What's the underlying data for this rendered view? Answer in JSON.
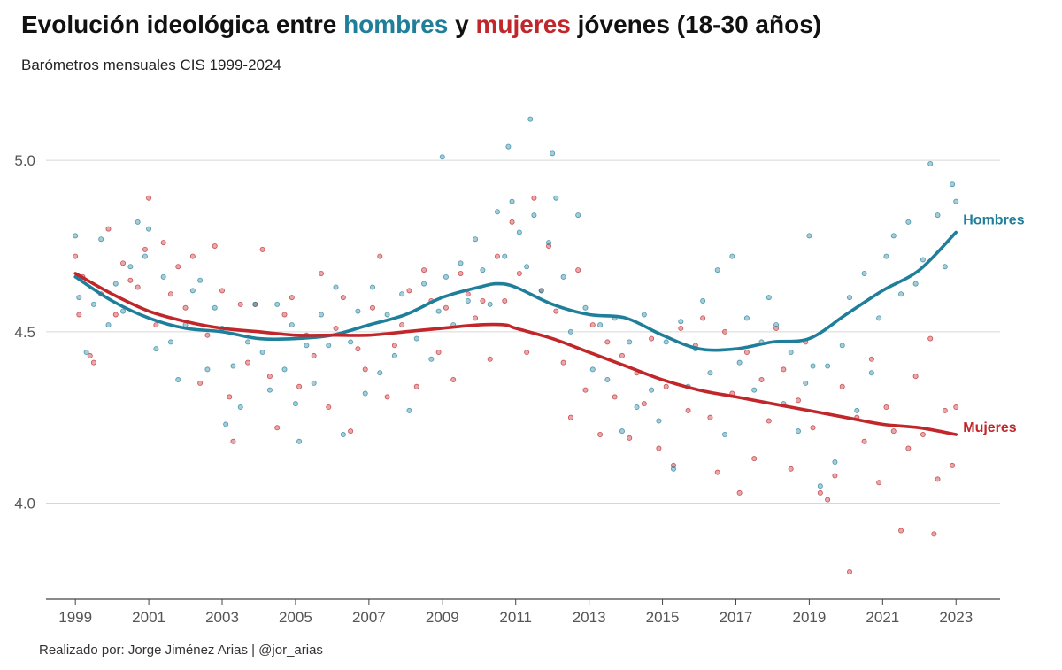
{
  "header": {
    "title_part1": "Evolución ideológica entre ",
    "title_men": "hombres",
    "title_part2": " y ",
    "title_women": "mujeres",
    "title_part3": " jóvenes (18-30 años)",
    "subtitle": "Barómetros mensuales CIS 1999-2024"
  },
  "caption": "Realizado por: Jorge Jiménez Arias | @jor_arias",
  "colors": {
    "men": "#1f7f9b",
    "women": "#c0262a",
    "grid": "#d6d6d6",
    "axis": "#444444"
  },
  "chart_data": {
    "type": "scatter",
    "title": "Evolución ideológica entre hombres y mujeres jóvenes (18-30 años)",
    "subtitle": "Barómetros mensuales CIS 1999-2024",
    "xlabel": "",
    "ylabel": "",
    "xlim": [
      1998.2,
      2024.2
    ],
    "ylim": [
      3.72,
      5.23
    ],
    "x_ticks": [
      1999,
      2001,
      2003,
      2005,
      2007,
      2009,
      2011,
      2013,
      2015,
      2017,
      2019,
      2021,
      2023
    ],
    "y_ticks": [
      4.0,
      4.5,
      5.0
    ],
    "x_tick_labels": [
      "1999",
      "2001",
      "2003",
      "2005",
      "2007",
      "2009",
      "2011",
      "2013",
      "2015",
      "2017",
      "2019",
      "2021",
      "2023"
    ],
    "y_tick_labels": [
      "4.0",
      "4.5",
      "5.0"
    ],
    "grid": "horizontal",
    "series": [
      {
        "name": "Hombres",
        "color": "#1f7f9b",
        "trend": {
          "x": [
            1999,
            2000,
            2001,
            2002,
            2003,
            2004,
            2005,
            2006,
            2007,
            2008,
            2009,
            2010,
            2010.5,
            2011,
            2012,
            2013,
            2014,
            2015,
            2016,
            2017,
            2018,
            2019,
            2020,
            2021,
            2022,
            2023
          ],
          "y": [
            4.66,
            4.59,
            4.54,
            4.51,
            4.5,
            4.48,
            4.48,
            4.49,
            4.52,
            4.55,
            4.6,
            4.63,
            4.64,
            4.63,
            4.58,
            4.55,
            4.54,
            4.49,
            4.45,
            4.45,
            4.47,
            4.48,
            4.55,
            4.62,
            4.68,
            4.79
          ]
        },
        "points": [
          [
            1999.0,
            4.78
          ],
          [
            1999.1,
            4.6
          ],
          [
            1999.3,
            4.44
          ],
          [
            1999.5,
            4.58
          ],
          [
            1999.7,
            4.77
          ],
          [
            1999.9,
            4.52
          ],
          [
            2000.1,
            4.64
          ],
          [
            2000.3,
            4.56
          ],
          [
            2000.5,
            4.69
          ],
          [
            2000.7,
            4.82
          ],
          [
            2000.9,
            4.72
          ],
          [
            2001.0,
            4.8
          ],
          [
            2001.2,
            4.45
          ],
          [
            2001.4,
            4.66
          ],
          [
            2001.6,
            4.47
          ],
          [
            2001.8,
            4.36
          ],
          [
            2002.0,
            4.52
          ],
          [
            2002.2,
            4.62
          ],
          [
            2002.4,
            4.65
          ],
          [
            2002.6,
            4.39
          ],
          [
            2002.8,
            4.57
          ],
          [
            2003.0,
            4.51
          ],
          [
            2003.1,
            4.23
          ],
          [
            2003.3,
            4.4
          ],
          [
            2003.5,
            4.28
          ],
          [
            2003.7,
            4.47
          ],
          [
            2003.9,
            4.58
          ],
          [
            2004.1,
            4.44
          ],
          [
            2004.3,
            4.33
          ],
          [
            2004.5,
            4.58
          ],
          [
            2004.7,
            4.39
          ],
          [
            2004.9,
            4.52
          ],
          [
            2005.0,
            4.29
          ],
          [
            2005.1,
            4.18
          ],
          [
            2005.3,
            4.46
          ],
          [
            2005.5,
            4.35
          ],
          [
            2005.7,
            4.55
          ],
          [
            2005.9,
            4.46
          ],
          [
            2006.1,
            4.63
          ],
          [
            2006.3,
            4.2
          ],
          [
            2006.5,
            4.47
          ],
          [
            2006.7,
            4.56
          ],
          [
            2006.9,
            4.32
          ],
          [
            2007.1,
            4.63
          ],
          [
            2007.3,
            4.38
          ],
          [
            2007.5,
            4.55
          ],
          [
            2007.7,
            4.43
          ],
          [
            2007.9,
            4.61
          ],
          [
            2008.1,
            4.27
          ],
          [
            2008.3,
            4.48
          ],
          [
            2008.5,
            4.64
          ],
          [
            2008.7,
            4.42
          ],
          [
            2008.9,
            4.56
          ],
          [
            2009.0,
            5.01
          ],
          [
            2009.1,
            4.66
          ],
          [
            2009.3,
            4.52
          ],
          [
            2009.5,
            4.7
          ],
          [
            2009.7,
            4.59
          ],
          [
            2009.9,
            4.77
          ],
          [
            2010.1,
            4.68
          ],
          [
            2010.3,
            4.58
          ],
          [
            2010.5,
            4.85
          ],
          [
            2010.7,
            4.72
          ],
          [
            2010.8,
            5.04
          ],
          [
            2010.9,
            4.88
          ],
          [
            2011.1,
            4.79
          ],
          [
            2011.3,
            4.69
          ],
          [
            2011.4,
            5.12
          ],
          [
            2011.5,
            4.84
          ],
          [
            2011.7,
            4.62
          ],
          [
            2011.9,
            4.76
          ],
          [
            2012.0,
            5.02
          ],
          [
            2012.1,
            4.89
          ],
          [
            2012.3,
            4.66
          ],
          [
            2012.5,
            4.5
          ],
          [
            2012.7,
            4.84
          ],
          [
            2012.9,
            4.57
          ],
          [
            2013.1,
            4.39
          ],
          [
            2013.3,
            4.52
          ],
          [
            2013.5,
            4.36
          ],
          [
            2013.7,
            4.54
          ],
          [
            2013.9,
            4.21
          ],
          [
            2014.1,
            4.47
          ],
          [
            2014.3,
            4.28
          ],
          [
            2014.5,
            4.55
          ],
          [
            2014.7,
            4.33
          ],
          [
            2014.9,
            4.24
          ],
          [
            2015.1,
            4.47
          ],
          [
            2015.3,
            4.1
          ],
          [
            2015.5,
            4.53
          ],
          [
            2015.7,
            4.34
          ],
          [
            2015.9,
            4.45
          ],
          [
            2016.1,
            4.59
          ],
          [
            2016.3,
            4.38
          ],
          [
            2016.5,
            4.68
          ],
          [
            2016.7,
            4.2
          ],
          [
            2016.9,
            4.72
          ],
          [
            2017.1,
            4.41
          ],
          [
            2017.3,
            4.54
          ],
          [
            2017.5,
            4.33
          ],
          [
            2017.7,
            4.47
          ],
          [
            2017.9,
            4.6
          ],
          [
            2018.1,
            4.52
          ],
          [
            2018.3,
            4.29
          ],
          [
            2018.5,
            4.44
          ],
          [
            2018.7,
            4.21
          ],
          [
            2018.9,
            4.35
          ],
          [
            2019.0,
            4.78
          ],
          [
            2019.1,
            4.4
          ],
          [
            2019.3,
            4.05
          ],
          [
            2019.5,
            4.4
          ],
          [
            2019.7,
            4.12
          ],
          [
            2019.9,
            4.46
          ],
          [
            2020.1,
            4.6
          ],
          [
            2020.3,
            4.27
          ],
          [
            2020.5,
            4.67
          ],
          [
            2020.7,
            4.38
          ],
          [
            2020.9,
            4.54
          ],
          [
            2021.1,
            4.72
          ],
          [
            2021.3,
            4.78
          ],
          [
            2021.5,
            4.61
          ],
          [
            2021.7,
            4.82
          ],
          [
            2021.9,
            4.64
          ],
          [
            2022.1,
            4.71
          ],
          [
            2022.3,
            4.99
          ],
          [
            2022.5,
            4.84
          ],
          [
            2022.7,
            4.69
          ],
          [
            2022.9,
            4.93
          ],
          [
            2023.0,
            4.88
          ]
        ]
      },
      {
        "name": "Mujeres",
        "color": "#c0262a",
        "trend": {
          "x": [
            1999,
            2000,
            2001,
            2002,
            2003,
            2004,
            2005,
            2006,
            2007,
            2008,
            2009,
            2010,
            2010.7,
            2011,
            2012,
            2013,
            2014,
            2015,
            2016,
            2017,
            2018,
            2019,
            2020,
            2021,
            2022,
            2023
          ],
          "y": [
            4.67,
            4.61,
            4.56,
            4.53,
            4.51,
            4.5,
            4.49,
            4.49,
            4.49,
            4.5,
            4.51,
            4.52,
            4.52,
            4.51,
            4.48,
            4.44,
            4.4,
            4.36,
            4.33,
            4.31,
            4.29,
            4.27,
            4.25,
            4.23,
            4.22,
            4.2
          ]
        },
        "points": [
          [
            1999.0,
            4.72
          ],
          [
            1999.1,
            4.55
          ],
          [
            1999.2,
            4.66
          ],
          [
            1999.4,
            4.43
          ],
          [
            1999.5,
            4.41
          ],
          [
            1999.7,
            4.61
          ],
          [
            1999.9,
            4.8
          ],
          [
            2000.1,
            4.55
          ],
          [
            2000.3,
            4.7
          ],
          [
            2000.5,
            4.65
          ],
          [
            2000.7,
            4.63
          ],
          [
            2000.9,
            4.74
          ],
          [
            2001.0,
            4.89
          ],
          [
            2001.2,
            4.52
          ],
          [
            2001.4,
            4.76
          ],
          [
            2001.6,
            4.61
          ],
          [
            2001.8,
            4.69
          ],
          [
            2002.0,
            4.57
          ],
          [
            2002.2,
            4.72
          ],
          [
            2002.4,
            4.35
          ],
          [
            2002.6,
            4.49
          ],
          [
            2002.8,
            4.75
          ],
          [
            2003.0,
            4.62
          ],
          [
            2003.2,
            4.31
          ],
          [
            2003.3,
            4.18
          ],
          [
            2003.5,
            4.58
          ],
          [
            2003.7,
            4.41
          ],
          [
            2003.9,
            4.58
          ],
          [
            2004.1,
            4.74
          ],
          [
            2004.3,
            4.37
          ],
          [
            2004.5,
            4.22
          ],
          [
            2004.7,
            4.55
          ],
          [
            2004.9,
            4.6
          ],
          [
            2005.1,
            4.34
          ],
          [
            2005.3,
            4.49
          ],
          [
            2005.5,
            4.43
          ],
          [
            2005.7,
            4.67
          ],
          [
            2005.9,
            4.28
          ],
          [
            2006.1,
            4.51
          ],
          [
            2006.3,
            4.6
          ],
          [
            2006.5,
            4.21
          ],
          [
            2006.7,
            4.45
          ],
          [
            2006.9,
            4.39
          ],
          [
            2007.1,
            4.57
          ],
          [
            2007.3,
            4.72
          ],
          [
            2007.5,
            4.31
          ],
          [
            2007.7,
            4.46
          ],
          [
            2007.9,
            4.52
          ],
          [
            2008.1,
            4.62
          ],
          [
            2008.3,
            4.34
          ],
          [
            2008.5,
            4.68
          ],
          [
            2008.7,
            4.59
          ],
          [
            2008.9,
            4.44
          ],
          [
            2009.1,
            4.57
          ],
          [
            2009.3,
            4.36
          ],
          [
            2009.5,
            4.67
          ],
          [
            2009.7,
            4.61
          ],
          [
            2009.9,
            4.54
          ],
          [
            2010.1,
            4.59
          ],
          [
            2010.3,
            4.42
          ],
          [
            2010.5,
            4.72
          ],
          [
            2010.7,
            4.59
          ],
          [
            2010.9,
            4.82
          ],
          [
            2011.1,
            4.67
          ],
          [
            2011.3,
            4.44
          ],
          [
            2011.5,
            4.89
          ],
          [
            2011.7,
            4.62
          ],
          [
            2011.9,
            4.75
          ],
          [
            2012.1,
            4.56
          ],
          [
            2012.3,
            4.41
          ],
          [
            2012.5,
            4.25
          ],
          [
            2012.7,
            4.68
          ],
          [
            2012.9,
            4.33
          ],
          [
            2013.1,
            4.52
          ],
          [
            2013.3,
            4.2
          ],
          [
            2013.5,
            4.47
          ],
          [
            2013.7,
            4.31
          ],
          [
            2013.9,
            4.43
          ],
          [
            2014.1,
            4.19
          ],
          [
            2014.3,
            4.38
          ],
          [
            2014.5,
            4.29
          ],
          [
            2014.7,
            4.48
          ],
          [
            2014.9,
            4.16
          ],
          [
            2015.1,
            4.34
          ],
          [
            2015.3,
            4.11
          ],
          [
            2015.5,
            4.51
          ],
          [
            2015.7,
            4.27
          ],
          [
            2015.9,
            4.46
          ],
          [
            2016.1,
            4.54
          ],
          [
            2016.3,
            4.25
          ],
          [
            2016.5,
            4.09
          ],
          [
            2016.7,
            4.5
          ],
          [
            2016.9,
            4.32
          ],
          [
            2017.1,
            4.03
          ],
          [
            2017.3,
            4.44
          ],
          [
            2017.5,
            4.13
          ],
          [
            2017.7,
            4.36
          ],
          [
            2017.9,
            4.24
          ],
          [
            2018.1,
            4.51
          ],
          [
            2018.3,
            4.39
          ],
          [
            2018.5,
            4.1
          ],
          [
            2018.7,
            4.3
          ],
          [
            2018.9,
            4.47
          ],
          [
            2019.1,
            4.22
          ],
          [
            2019.3,
            4.03
          ],
          [
            2019.5,
            4.01
          ],
          [
            2019.7,
            4.08
          ],
          [
            2019.9,
            4.34
          ],
          [
            2020.1,
            3.8
          ],
          [
            2020.3,
            4.25
          ],
          [
            2020.5,
            4.18
          ],
          [
            2020.7,
            4.42
          ],
          [
            2020.9,
            4.06
          ],
          [
            2021.1,
            4.28
          ],
          [
            2021.3,
            4.21
          ],
          [
            2021.5,
            3.92
          ],
          [
            2021.7,
            4.16
          ],
          [
            2021.9,
            4.37
          ],
          [
            2022.1,
            4.2
          ],
          [
            2022.3,
            4.48
          ],
          [
            2022.4,
            3.91
          ],
          [
            2022.5,
            4.07
          ],
          [
            2022.7,
            4.27
          ],
          [
            2022.9,
            4.11
          ],
          [
            2023.0,
            4.28
          ]
        ]
      }
    ]
  }
}
